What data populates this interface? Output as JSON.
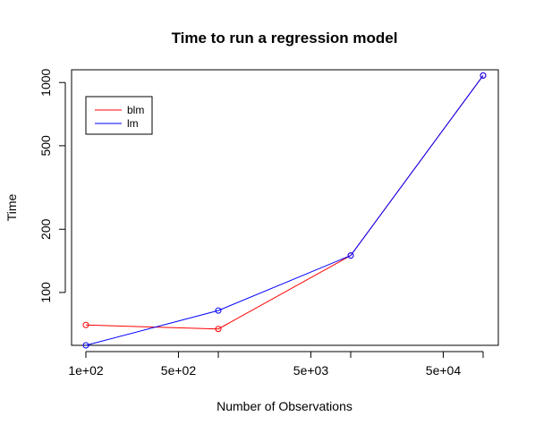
{
  "chart_data": {
    "type": "line",
    "title": "Time to run a regression model",
    "xlabel": "Number of Observations",
    "ylabel": "Time",
    "x_scale": "log",
    "y_scale": "log",
    "x": [
      100,
      1000,
      10000,
      100000
    ],
    "xlim": [
      100,
      100000
    ],
    "ylim": [
      56,
      1150
    ],
    "series": [
      {
        "name": "blm",
        "color": "#ff0000",
        "values": [
          70,
          67,
          150,
          1080
        ]
      },
      {
        "name": "lm",
        "color": "#0000ff",
        "values": [
          56,
          82,
          150,
          1080
        ]
      }
    ],
    "x_ticks": [
      {
        "value": 100,
        "label": "1e+02"
      },
      {
        "value": 500,
        "label": "5e+02"
      },
      {
        "value": 5000,
        "label": "5e+03"
      },
      {
        "value": 50000,
        "label": "5e+04"
      }
    ],
    "x_ticks_unlabeled": [
      1000,
      10000,
      100000
    ],
    "y_ticks": [
      {
        "value": 100,
        "label": "100"
      },
      {
        "value": 200,
        "label": "200"
      },
      {
        "value": 500,
        "label": "500"
      },
      {
        "value": 1000,
        "label": "1000"
      }
    ],
    "legend": {
      "position": "top-left",
      "entries": [
        {
          "label": "blm",
          "color": "#ff0000"
        },
        {
          "label": "lm",
          "color": "#0000ff"
        }
      ]
    },
    "grid": false
  }
}
